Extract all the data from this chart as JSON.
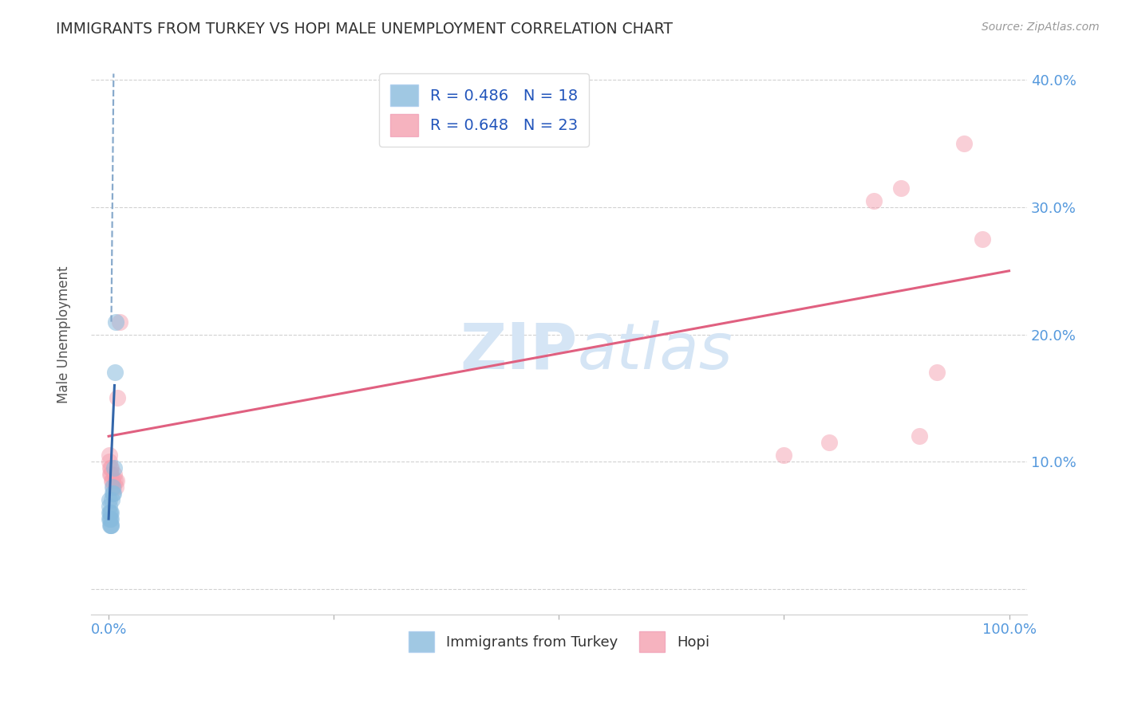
{
  "title": "IMMIGRANTS FROM TURKEY VS HOPI MALE UNEMPLOYMENT CORRELATION CHART",
  "source": "Source: ZipAtlas.com",
  "ylabel": "Male Unemployment",
  "R_blue": 0.486,
  "N_blue": 18,
  "R_pink": 0.648,
  "N_pink": 23,
  "blue_scatter_x": [
    0.05,
    0.08,
    0.1,
    0.12,
    0.15,
    0.18,
    0.2,
    0.22,
    0.25,
    0.28,
    0.3,
    0.35,
    0.4,
    0.45,
    0.5,
    0.6,
    0.7,
    0.8
  ],
  "blue_scatter_y": [
    7.0,
    6.5,
    6.0,
    5.5,
    6.0,
    5.5,
    5.0,
    5.5,
    5.0,
    5.0,
    6.0,
    7.0,
    8.0,
    7.5,
    7.5,
    9.5,
    17.0,
    21.0
  ],
  "pink_scatter_x": [
    0.05,
    0.1,
    0.15,
    0.2,
    0.25,
    0.3,
    0.35,
    0.4,
    0.5,
    0.6,
    0.7,
    0.8,
    0.9,
    1.0,
    1.2,
    75.0,
    80.0,
    85.0,
    88.0,
    90.0,
    92.0,
    95.0,
    97.0
  ],
  "pink_scatter_y": [
    10.5,
    10.0,
    9.5,
    9.0,
    9.5,
    9.0,
    8.5,
    8.5,
    8.0,
    9.0,
    8.5,
    8.0,
    8.5,
    15.0,
    21.0,
    10.5,
    11.5,
    30.5,
    31.5,
    12.0,
    17.0,
    35.0,
    27.5
  ],
  "xlim": [
    -2,
    102
  ],
  "ylim": [
    -2,
    42
  ],
  "xtick_positions": [
    0,
    25,
    50,
    75,
    100
  ],
  "xtick_labels": [
    "0.0%",
    "",
    "",
    "",
    "100.0%"
  ],
  "ytick_positions": [
    0,
    10,
    20,
    30,
    40
  ],
  "ytick_labels": [
    "",
    "10.0%",
    "20.0%",
    "30.0%",
    "40.0%"
  ],
  "grid_color": "#cccccc",
  "background_color": "#ffffff",
  "title_color": "#333333",
  "blue_color": "#88bbdd",
  "pink_color": "#f4a0b0",
  "blue_line_color": "#3366aa",
  "pink_line_color": "#e06080",
  "blue_dashed_color": "#88aacc",
  "tick_label_color": "#5599dd",
  "watermark_color": "#d5e5f5",
  "pink_line_x0": 0.0,
  "pink_line_y0": 12.0,
  "pink_line_x1": 100.0,
  "pink_line_y1": 25.0,
  "blue_solid_x0": 0.0,
  "blue_solid_y0": 5.5,
  "blue_solid_x1": 0.65,
  "blue_solid_y1": 16.0,
  "blue_dashed_x0": 0.3,
  "blue_dashed_y0": 21.0,
  "blue_dashed_x1": 0.55,
  "blue_dashed_y1": 40.5
}
